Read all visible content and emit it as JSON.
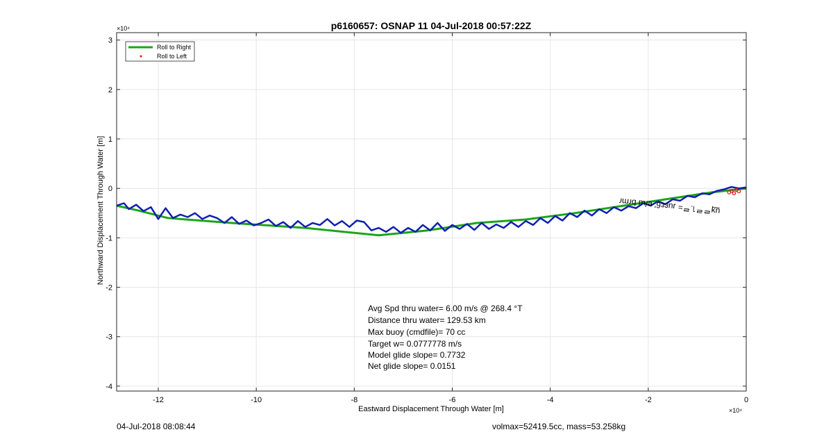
{
  "chart_data": {
    "type": "line",
    "title": "p6160657: OSNAP 11 04-Jul-2018 00:57:22Z",
    "xlabel": "Eastward Displacement Through Water [m]",
    "ylabel": "Northward Displacement Through Water [m]",
    "x_exponent_label": "×10⁴",
    "y_exponent_label": "×10⁴",
    "xlim": [
      -12.85,
      0
    ],
    "ylim": [
      -4.1,
      3.15
    ],
    "x_ticks": [
      -12,
      -10,
      -8,
      -6,
      -4,
      -2,
      0
    ],
    "y_ticks": [
      3,
      2,
      1,
      0,
      -1,
      -2,
      -3,
      -4
    ],
    "grid": true,
    "legend_position": "top-left",
    "legend": [
      {
        "label": "Roll to Right",
        "color": "#1aa51a",
        "style": "line"
      },
      {
        "label": "Roll to Left",
        "color": "#e01010",
        "style": "dot"
      }
    ],
    "series": [
      {
        "name": "Roll to Right",
        "color": "#1aa51a",
        "x": [
          -12.85,
          -12.4,
          -11.8,
          -10.5,
          -9.0,
          -7.5,
          -6.5,
          -5.5,
          -4.5,
          -3.5,
          -2.5,
          -1.5,
          -0.7,
          0
        ],
        "y": [
          -0.35,
          -0.45,
          -0.6,
          -0.7,
          -0.8,
          -0.95,
          -0.85,
          -0.7,
          -0.63,
          -0.5,
          -0.35,
          -0.2,
          -0.08,
          0
        ]
      },
      {
        "color": "#0f1fb0",
        "x": [
          -12.85,
          -12.7,
          -12.6,
          -12.45,
          -12.3,
          -12.15,
          -12.0,
          -11.85,
          -11.7,
          -11.55,
          -11.4,
          -11.25,
          -11.1,
          -10.95,
          -10.8,
          -10.65,
          -10.5,
          -10.35,
          -10.2,
          -10.05,
          -9.9,
          -9.75,
          -9.6,
          -9.45,
          -9.3,
          -9.15,
          -9.0,
          -8.85,
          -8.7,
          -8.55,
          -8.4,
          -8.25,
          -8.1,
          -7.95,
          -7.8,
          -7.65,
          -7.5,
          -7.35,
          -7.2,
          -7.05,
          -6.9,
          -6.75,
          -6.6,
          -6.45,
          -6.3,
          -6.15,
          -6.0,
          -5.85,
          -5.7,
          -5.55,
          -5.4,
          -5.25,
          -5.1,
          -4.95,
          -4.8,
          -4.65,
          -4.5,
          -4.35,
          -4.2,
          -4.05,
          -3.9,
          -3.75,
          -3.6,
          -3.45,
          -3.3,
          -3.15,
          -3.0,
          -2.85,
          -2.7,
          -2.55,
          -2.4,
          -2.25,
          -2.1,
          -1.95,
          -1.8,
          -1.65,
          -1.5,
          -1.35,
          -1.2,
          -1.05,
          -0.9,
          -0.75,
          -0.6,
          -0.45,
          -0.3,
          -0.15,
          0
        ],
        "y": [
          -0.35,
          -0.3,
          -0.42,
          -0.33,
          -0.46,
          -0.38,
          -0.62,
          -0.4,
          -0.6,
          -0.53,
          -0.58,
          -0.5,
          -0.62,
          -0.55,
          -0.6,
          -0.7,
          -0.58,
          -0.72,
          -0.65,
          -0.75,
          -0.7,
          -0.63,
          -0.76,
          -0.68,
          -0.8,
          -0.66,
          -0.78,
          -0.7,
          -0.74,
          -0.62,
          -0.75,
          -0.66,
          -0.78,
          -0.65,
          -0.68,
          -0.85,
          -0.8,
          -0.88,
          -0.78,
          -0.9,
          -0.8,
          -0.88,
          -0.74,
          -0.85,
          -0.7,
          -0.86,
          -0.74,
          -0.82,
          -0.72,
          -0.84,
          -0.7,
          -0.82,
          -0.73,
          -0.8,
          -0.68,
          -0.78,
          -0.66,
          -0.74,
          -0.6,
          -0.7,
          -0.56,
          -0.65,
          -0.5,
          -0.58,
          -0.45,
          -0.55,
          -0.42,
          -0.5,
          -0.38,
          -0.45,
          -0.36,
          -0.4,
          -0.3,
          -0.35,
          -0.26,
          -0.32,
          -0.22,
          -0.25,
          -0.15,
          -0.18,
          -0.1,
          -0.12,
          -0.05,
          -0.02,
          0.03,
          0.0,
          0.02
        ]
      }
    ],
    "roll_to_left_points": {
      "x": [
        -0.35,
        -0.3,
        -0.25,
        -0.2,
        -0.15
      ],
      "y": [
        -0.08,
        -0.05,
        -0.1,
        -0.03,
        -0.06
      ]
    },
    "overlap_label": "ОЧОЭЗПИЧ ПЧИ ЕСЭЕПИ =2.1121КШ",
    "overlap_label_visible_text": "u͟ʞᄅᄅ˥.ᄅ= ɹuɛɛ6' ɐ/ɯ bɾmɾ",
    "annotations": [
      "Avg Spd thru water=  6.00 m/s @ 268.4 °T",
      "Distance thru water= 129.53 km",
      "Max buoy (cmdfile)= 70 cc",
      "Target w= 0.0777778 m/s",
      "Model glide slope= 0.7732",
      "Net glide slope= 0.0151"
    ]
  },
  "footer": {
    "left": "04-Jul-2018 08:08:44",
    "right": "volmax=52419.5cc, mass=53.258kg"
  }
}
